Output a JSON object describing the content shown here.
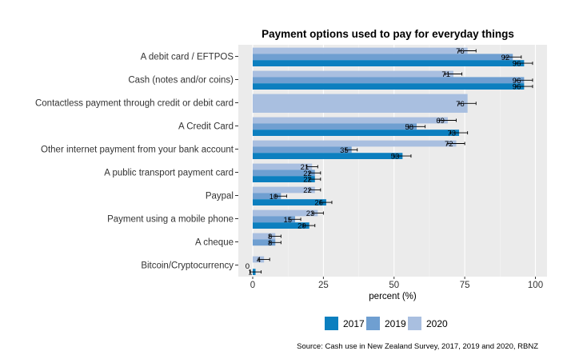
{
  "chart_data": {
    "type": "bar",
    "orientation": "horizontal",
    "title": "Payment options used to pay for everyday things",
    "xlabel": "percent (%)",
    "ylabel": "",
    "xlim": [
      0,
      100
    ],
    "xticks": [
      0,
      25,
      50,
      75,
      100
    ],
    "categories": [
      "A debit card / EFTPOS",
      "Cash (notes and/or coins)",
      "Contactless payment through credit or debit card",
      "A Credit Card",
      "Other internet payment from your bank account",
      "A public transport payment card",
      "Paypal",
      "Payment using a mobile phone",
      "A cheque",
      "Bitcoin/Cryptocurrency"
    ],
    "series": [
      {
        "name": "2020",
        "color": "#a9bfe0",
        "values": [
          76,
          71,
          76,
          69,
          72,
          21,
          22,
          23,
          8,
          4
        ]
      },
      {
        "name": "2019",
        "color": "#6f9fd1",
        "values": [
          92,
          96,
          null,
          58,
          35,
          22,
          10,
          15,
          8,
          0
        ]
      },
      {
        "name": "2017",
        "color": "#0c7fbf",
        "values": [
          96,
          96,
          null,
          73,
          53,
          22,
          26,
          20,
          null,
          1
        ]
      }
    ],
    "error_bars": true,
    "legend": {
      "position": "bottom",
      "order": [
        "2017",
        "2019",
        "2020"
      ]
    },
    "source": "Source: Cash use in New Zealand Survey, 2017, 2019 and 2020, RBNZ"
  }
}
